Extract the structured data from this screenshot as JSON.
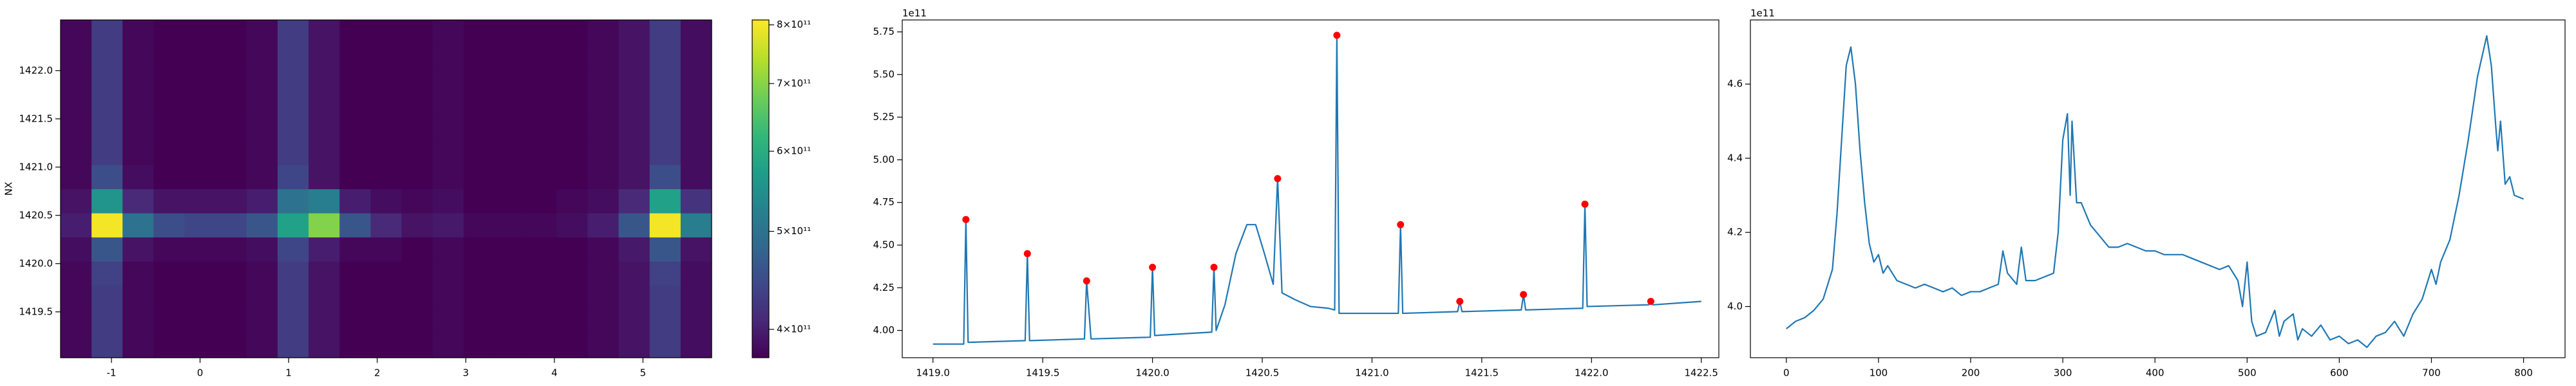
{
  "chart_data": [
    {
      "type": "heatmap",
      "y_label": "NX",
      "x": [
        -1.4,
        -1.05,
        -0.7,
        -0.35,
        0,
        0.35,
        0.7,
        1.05,
        1.4,
        1.75,
        2.1,
        2.45,
        2.8,
        3.15,
        3.5,
        3.85,
        4.2,
        4.55,
        4.9,
        5.25,
        5.6
      ],
      "y": [
        1419.15,
        1419.4,
        1419.65,
        1419.9,
        1420.15,
        1420.4,
        1420.65,
        1420.9,
        1421.15,
        1421.4,
        1421.65,
        1421.9,
        1422.15,
        1422.4
      ],
      "z": [
        [
          380000000000.0,
          430000000000.0,
          380000000000.0,
          375000000000.0,
          375000000000.0,
          375000000000.0,
          380000000000.0,
          430000000000.0,
          390000000000.0,
          375000000000.0,
          375000000000.0,
          375000000000.0,
          380000000000.0,
          375000000000.0,
          375000000000.0,
          375000000000.0,
          375000000000.0,
          380000000000.0,
          390000000000.0,
          430000000000.0,
          385000000000.0
        ],
        [
          380000000000.0,
          430000000000.0,
          380000000000.0,
          375000000000.0,
          375000000000.0,
          375000000000.0,
          380000000000.0,
          430000000000.0,
          390000000000.0,
          375000000000.0,
          375000000000.0,
          375000000000.0,
          380000000000.0,
          375000000000.0,
          375000000000.0,
          375000000000.0,
          375000000000.0,
          380000000000.0,
          390000000000.0,
          430000000000.0,
          385000000000.0
        ],
        [
          380000000000.0,
          430000000000.0,
          380000000000.0,
          375000000000.0,
          375000000000.0,
          375000000000.0,
          380000000000.0,
          430000000000.0,
          390000000000.0,
          375000000000.0,
          375000000000.0,
          375000000000.0,
          380000000000.0,
          375000000000.0,
          375000000000.0,
          375000000000.0,
          375000000000.0,
          380000000000.0,
          390000000000.0,
          430000000000.0,
          385000000000.0
        ],
        [
          380000000000.0,
          435000000000.0,
          380000000000.0,
          375000000000.0,
          375000000000.0,
          375000000000.0,
          380000000000.0,
          430000000000.0,
          390000000000.0,
          375000000000.0,
          375000000000.0,
          375000000000.0,
          380000000000.0,
          375000000000.0,
          375000000000.0,
          375000000000.0,
          375000000000.0,
          380000000000.0,
          390000000000.0,
          435000000000.0,
          385000000000.0
        ],
        [
          385000000000.0,
          460000000000.0,
          390000000000.0,
          380000000000.0,
          380000000000.0,
          380000000000.0,
          385000000000.0,
          440000000000.0,
          400000000000.0,
          380000000000.0,
          380000000000.0,
          375000000000.0,
          380000000000.0,
          375000000000.0,
          375000000000.0,
          375000000000.0,
          375000000000.0,
          380000000000.0,
          395000000000.0,
          460000000000.0,
          390000000000.0
        ],
        [
          400000000000.0,
          800000000000.0,
          500000000000.0,
          450000000000.0,
          440000000000.0,
          440000000000.0,
          460000000000.0,
          580000000000.0,
          700000000000.0,
          460000000000.0,
          410000000000.0,
          390000000000.0,
          395000000000.0,
          380000000000.0,
          380000000000.0,
          380000000000.0,
          385000000000.0,
          400000000000.0,
          460000000000.0,
          800000000000.0,
          520000000000.0
        ],
        [
          390000000000.0,
          560000000000.0,
          410000000000.0,
          390000000000.0,
          390000000000.0,
          390000000000.0,
          400000000000.0,
          500000000000.0,
          520000000000.0,
          400000000000.0,
          385000000000.0,
          380000000000.0,
          385000000000.0,
          375000000000.0,
          375000000000.0,
          375000000000.0,
          380000000000.0,
          385000000000.0,
          410000000000.0,
          580000000000.0,
          420000000000.0
        ],
        [
          380000000000.0,
          450000000000.0,
          385000000000.0,
          375000000000.0,
          375000000000.0,
          375000000000.0,
          380000000000.0,
          440000000000.0,
          390000000000.0,
          375000000000.0,
          375000000000.0,
          375000000000.0,
          380000000000.0,
          375000000000.0,
          375000000000.0,
          375000000000.0,
          375000000000.0,
          380000000000.0,
          390000000000.0,
          450000000000.0,
          385000000000.0
        ],
        [
          380000000000.0,
          430000000000.0,
          380000000000.0,
          375000000000.0,
          375000000000.0,
          375000000000.0,
          380000000000.0,
          430000000000.0,
          390000000000.0,
          375000000000.0,
          375000000000.0,
          375000000000.0,
          380000000000.0,
          375000000000.0,
          375000000000.0,
          375000000000.0,
          375000000000.0,
          380000000000.0,
          390000000000.0,
          430000000000.0,
          385000000000.0
        ],
        [
          380000000000.0,
          430000000000.0,
          380000000000.0,
          375000000000.0,
          375000000000.0,
          375000000000.0,
          380000000000.0,
          430000000000.0,
          390000000000.0,
          375000000000.0,
          375000000000.0,
          375000000000.0,
          380000000000.0,
          375000000000.0,
          375000000000.0,
          375000000000.0,
          375000000000.0,
          380000000000.0,
          390000000000.0,
          430000000000.0,
          385000000000.0
        ],
        [
          380000000000.0,
          430000000000.0,
          380000000000.0,
          375000000000.0,
          375000000000.0,
          375000000000.0,
          380000000000.0,
          430000000000.0,
          390000000000.0,
          375000000000.0,
          375000000000.0,
          375000000000.0,
          380000000000.0,
          375000000000.0,
          375000000000.0,
          375000000000.0,
          375000000000.0,
          380000000000.0,
          390000000000.0,
          430000000000.0,
          385000000000.0
        ],
        [
          380000000000.0,
          430000000000.0,
          380000000000.0,
          375000000000.0,
          375000000000.0,
          375000000000.0,
          380000000000.0,
          430000000000.0,
          390000000000.0,
          375000000000.0,
          375000000000.0,
          375000000000.0,
          380000000000.0,
          375000000000.0,
          375000000000.0,
          375000000000.0,
          375000000000.0,
          380000000000.0,
          390000000000.0,
          430000000000.0,
          385000000000.0
        ],
        [
          380000000000.0,
          430000000000.0,
          380000000000.0,
          375000000000.0,
          375000000000.0,
          375000000000.0,
          380000000000.0,
          430000000000.0,
          390000000000.0,
          375000000000.0,
          375000000000.0,
          375000000000.0,
          380000000000.0,
          375000000000.0,
          375000000000.0,
          375000000000.0,
          375000000000.0,
          380000000000.0,
          390000000000.0,
          430000000000.0,
          385000000000.0
        ],
        [
          380000000000.0,
          430000000000.0,
          380000000000.0,
          375000000000.0,
          375000000000.0,
          375000000000.0,
          380000000000.0,
          430000000000.0,
          390000000000.0,
          375000000000.0,
          375000000000.0,
          375000000000.0,
          380000000000.0,
          375000000000.0,
          375000000000.0,
          375000000000.0,
          375000000000.0,
          380000000000.0,
          390000000000.0,
          430000000000.0,
          385000000000.0
        ]
      ],
      "xlim": [
        -1.575,
        5.775
      ],
      "ylim": [
        1419.025,
        1422.525
      ],
      "xticks": [
        -1,
        0,
        1,
        2,
        3,
        4,
        5
      ],
      "yticks": [
        1419.5,
        {
          "value": 1420,
          "label": "1420.0"
        },
        1420.5,
        {
          "value": 1421,
          "label": "1421.0"
        },
        1421.5,
        {
          "value": 1422,
          "label": "1422.0"
        }
      ],
      "colorbar": {
        "lim": [
          375000000000.0,
          809000000000.0
        ],
        "log": true,
        "ticks": [
          {
            "value": 400000000000.0,
            "label": "4×10¹¹"
          },
          {
            "value": 500000000000.0,
            "label": "5×10¹¹"
          },
          {
            "value": 600000000000.0,
            "label": "6×10¹¹"
          },
          {
            "value": 700000000000.0,
            "label": "7×10¹¹"
          },
          {
            "value": 800000000000.0,
            "label": "8×10¹¹"
          }
        ]
      }
    },
    {
      "type": "line",
      "y_offset_label": "1e11",
      "series": [
        {
          "color": "#1f77b4",
          "mode": "line",
          "x": [
            1419.0,
            1419.14,
            1419.15,
            1419.16,
            1419.42,
            1419.43,
            1419.44,
            1419.69,
            1419.7,
            1419.72,
            1419.99,
            1420.0,
            1420.01,
            1420.27,
            1420.28,
            1420.29,
            1420.33,
            1420.38,
            1420.43,
            1420.47,
            1420.51,
            1420.55,
            1420.57,
            1420.59,
            1420.65,
            1420.72,
            1420.8,
            1420.83,
            1420.84,
            1420.85,
            1421.0,
            1421.12,
            1421.13,
            1421.14,
            1421.39,
            1421.4,
            1421.41,
            1421.68,
            1421.69,
            1421.7,
            1421.96,
            1421.97,
            1421.98,
            1422.26,
            1422.27,
            1422.28,
            1422.5
          ],
          "values": [
            3.92,
            3.92,
            4.65,
            3.93,
            3.94,
            4.45,
            3.94,
            3.95,
            4.29,
            3.95,
            3.96,
            4.37,
            3.97,
            3.99,
            4.37,
            4.0,
            4.15,
            4.45,
            4.62,
            4.62,
            4.45,
            4.27,
            4.89,
            4.22,
            4.18,
            4.14,
            4.13,
            4.12,
            5.73,
            4.1,
            4.1,
            4.1,
            4.62,
            4.1,
            4.11,
            4.17,
            4.11,
            4.12,
            4.21,
            4.12,
            4.13,
            4.74,
            4.14,
            4.15,
            4.17,
            4.15,
            4.17
          ]
        },
        {
          "color": "#ff0000",
          "mode": "markers",
          "x": [
            1419.15,
            1419.43,
            1419.7,
            1420.0,
            1420.28,
            1420.57,
            1420.84,
            1421.13,
            1421.4,
            1421.69,
            1421.97,
            1422.27
          ],
          "values": [
            4.65,
            4.45,
            4.29,
            4.37,
            4.37,
            4.89,
            5.73,
            4.62,
            4.17,
            4.21,
            4.74,
            4.17
          ]
        }
      ],
      "xlim": [
        1418.86,
        1422.58
      ],
      "ylim": [
        3.84,
        5.82
      ],
      "xticks": [
        {
          "value": 1419,
          "label": "1419.0"
        },
        1419.5,
        {
          "value": 1420,
          "label": "1420.0"
        },
        1420.5,
        {
          "value": 1421,
          "label": "1421.0"
        },
        1421.5,
        {
          "value": 1422,
          "label": "1422.0"
        },
        1422.5
      ],
      "yticks": [
        {
          "value": 4,
          "label": "4.00"
        },
        4.25,
        {
          "value": 4.5,
          "label": "4.50"
        },
        4.75,
        {
          "value": 5,
          "label": "5.00"
        },
        5.25,
        {
          "value": 5.5,
          "label": "5.50"
        },
        5.75
      ]
    },
    {
      "type": "line",
      "y_offset_label": "1e11",
      "series": [
        {
          "color": "#1f77b4",
          "mode": "line",
          "x": [
            0,
            10,
            20,
            30,
            40,
            50,
            55,
            60,
            65,
            70,
            75,
            80,
            85,
            90,
            95,
            100,
            105,
            110,
            120,
            130,
            140,
            150,
            160,
            170,
            180,
            190,
            200,
            210,
            220,
            230,
            235,
            240,
            250,
            255,
            260,
            270,
            280,
            290,
            295,
            300,
            305,
            308,
            310,
            315,
            320,
            330,
            340,
            350,
            360,
            370,
            380,
            390,
            400,
            410,
            420,
            430,
            440,
            450,
            460,
            470,
            480,
            490,
            495,
            500,
            505,
            510,
            520,
            530,
            535,
            540,
            550,
            555,
            560,
            570,
            580,
            590,
            600,
            610,
            620,
            630,
            640,
            650,
            660,
            670,
            680,
            690,
            700,
            705,
            710,
            720,
            730,
            740,
            750,
            760,
            765,
            770,
            772,
            775,
            780,
            785,
            790,
            800
          ],
          "values": [
            3.94,
            3.96,
            3.97,
            3.99,
            4.02,
            4.1,
            4.25,
            4.45,
            4.65,
            4.7,
            4.6,
            4.42,
            4.28,
            4.17,
            4.12,
            4.14,
            4.09,
            4.11,
            4.07,
            4.06,
            4.05,
            4.06,
            4.05,
            4.04,
            4.05,
            4.03,
            4.04,
            4.04,
            4.05,
            4.06,
            4.15,
            4.09,
            4.06,
            4.16,
            4.07,
            4.07,
            4.08,
            4.09,
            4.2,
            4.45,
            4.52,
            4.3,
            4.5,
            4.28,
            4.28,
            4.22,
            4.19,
            4.16,
            4.16,
            4.17,
            4.16,
            4.15,
            4.15,
            4.14,
            4.14,
            4.14,
            4.13,
            4.12,
            4.11,
            4.1,
            4.11,
            4.07,
            4.0,
            4.12,
            3.96,
            3.92,
            3.93,
            3.99,
            3.92,
            3.96,
            3.98,
            3.91,
            3.94,
            3.92,
            3.95,
            3.91,
            3.92,
            3.9,
            3.91,
            3.89,
            3.92,
            3.93,
            3.96,
            3.92,
            3.98,
            4.02,
            4.1,
            4.06,
            4.12,
            4.18,
            4.3,
            4.45,
            4.62,
            4.73,
            4.65,
            4.48,
            4.42,
            4.5,
            4.33,
            4.35,
            4.3,
            4.29
          ]
        }
      ],
      "xlim": [
        -39,
        845
      ],
      "ylim": [
        3.862,
        4.773
      ],
      "xticks": [
        0,
        100,
        200,
        300,
        400,
        500,
        600,
        700,
        800
      ],
      "yticks": [
        {
          "value": 4,
          "label": "4.0"
        },
        4.2,
        4.4,
        4.6
      ]
    }
  ]
}
